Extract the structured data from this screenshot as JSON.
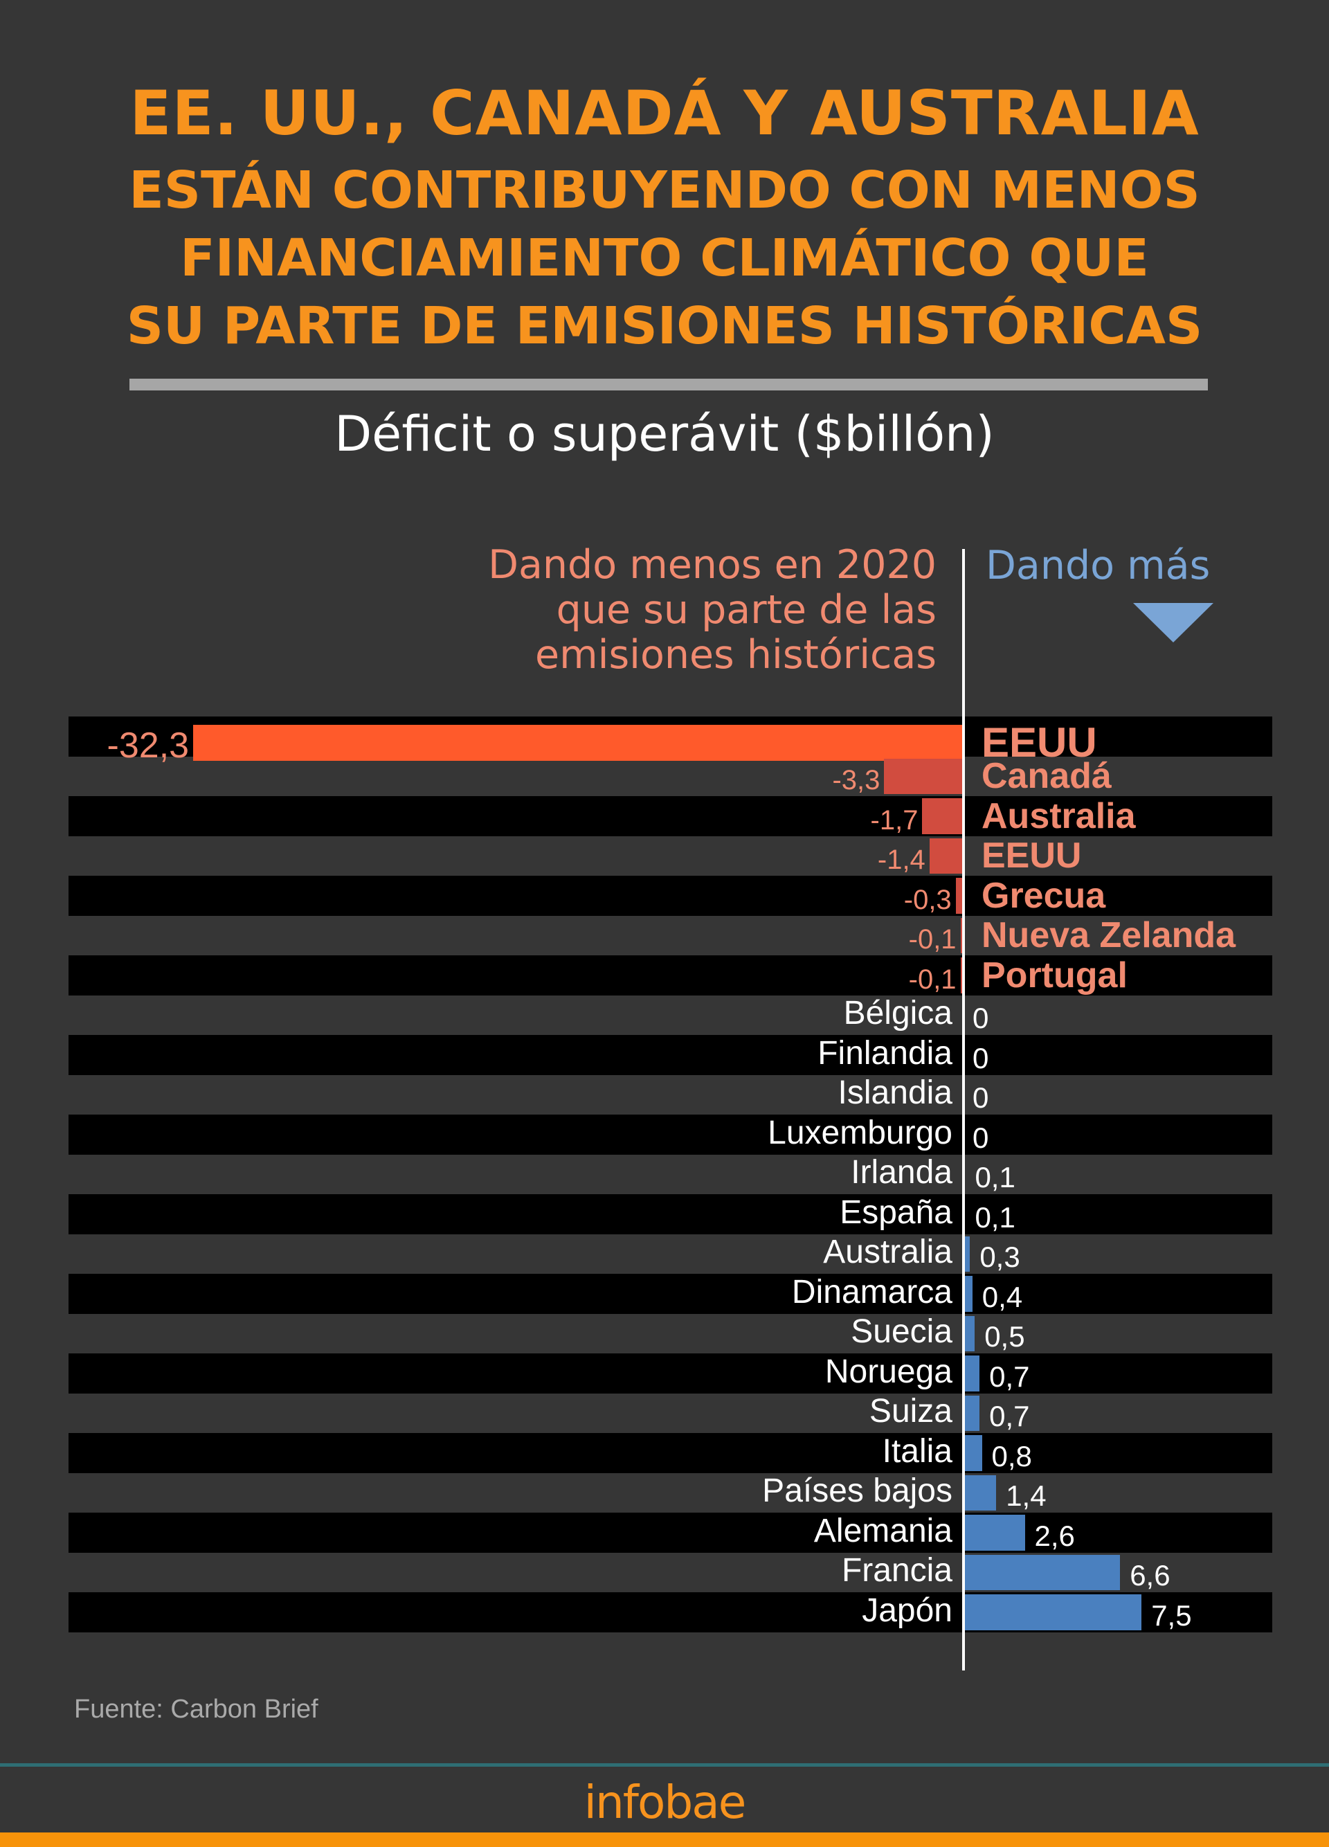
{
  "chart_data": {
    "type": "bar",
    "orientation": "horizontal",
    "title": [
      "EE. UU., CANADÁ Y AUSTRALIA",
      "ESTÁN CONTRIBUYENDO CON MENOS",
      "FINANCIAMIENTO CLIMÁTICO QUE",
      "SU PARTE DE EMISIONES HISTÓRICAS"
    ],
    "subtitle": "Déficit o superávit ($billón)",
    "legend_negative": [
      "Dando menos en 2020",
      "que su parte de las",
      "emisiones históricas"
    ],
    "legend_positive": "Dando más",
    "categories": [
      "EEUU",
      "Canadá",
      "Australia",
      "EEUU",
      "Grecua",
      "Nueva Zelanda",
      "Portugal",
      "Bélgica",
      "Finlandia",
      "Islandia",
      "Luxemburgo",
      "Irlanda",
      "España",
      "Australia",
      "Dinamarca",
      "Suecia",
      "Noruega",
      "Suiza",
      "Italia",
      "Países bajos",
      "Alemania",
      "Francia",
      "Japón"
    ],
    "values": [
      -32.3,
      -3.3,
      -1.7,
      -1.4,
      -0.3,
      -0.1,
      -0.1,
      0,
      0,
      0,
      0,
      0.1,
      0.1,
      0.3,
      0.4,
      0.5,
      0.7,
      0.7,
      0.8,
      1.4,
      2.6,
      6.6,
      7.5
    ],
    "value_labels": [
      "-32,3",
      "-3,3",
      "-1,7",
      "-1,4",
      "-0,3",
      "-0,1",
      "-0,1",
      "0",
      "0",
      "0",
      "0",
      "0,1",
      "0,1",
      "0,3",
      "0,4",
      "0,5",
      "0,7",
      "0,7",
      "0,8",
      "1,4",
      "2,6",
      "6,6",
      "7,5"
    ],
    "xlim": [
      -32.3,
      7.5
    ],
    "grid": false,
    "colors": {
      "largest_negative": "#ff5a2b",
      "negative": "#d14c3f",
      "positive": "#4a80bf",
      "negative_text": "#f08a70",
      "positive_text": "#7aa5d6",
      "title": "#f7931e"
    }
  },
  "footer": {
    "source": "Fuente: Carbon Brief",
    "logo": "infobae"
  }
}
